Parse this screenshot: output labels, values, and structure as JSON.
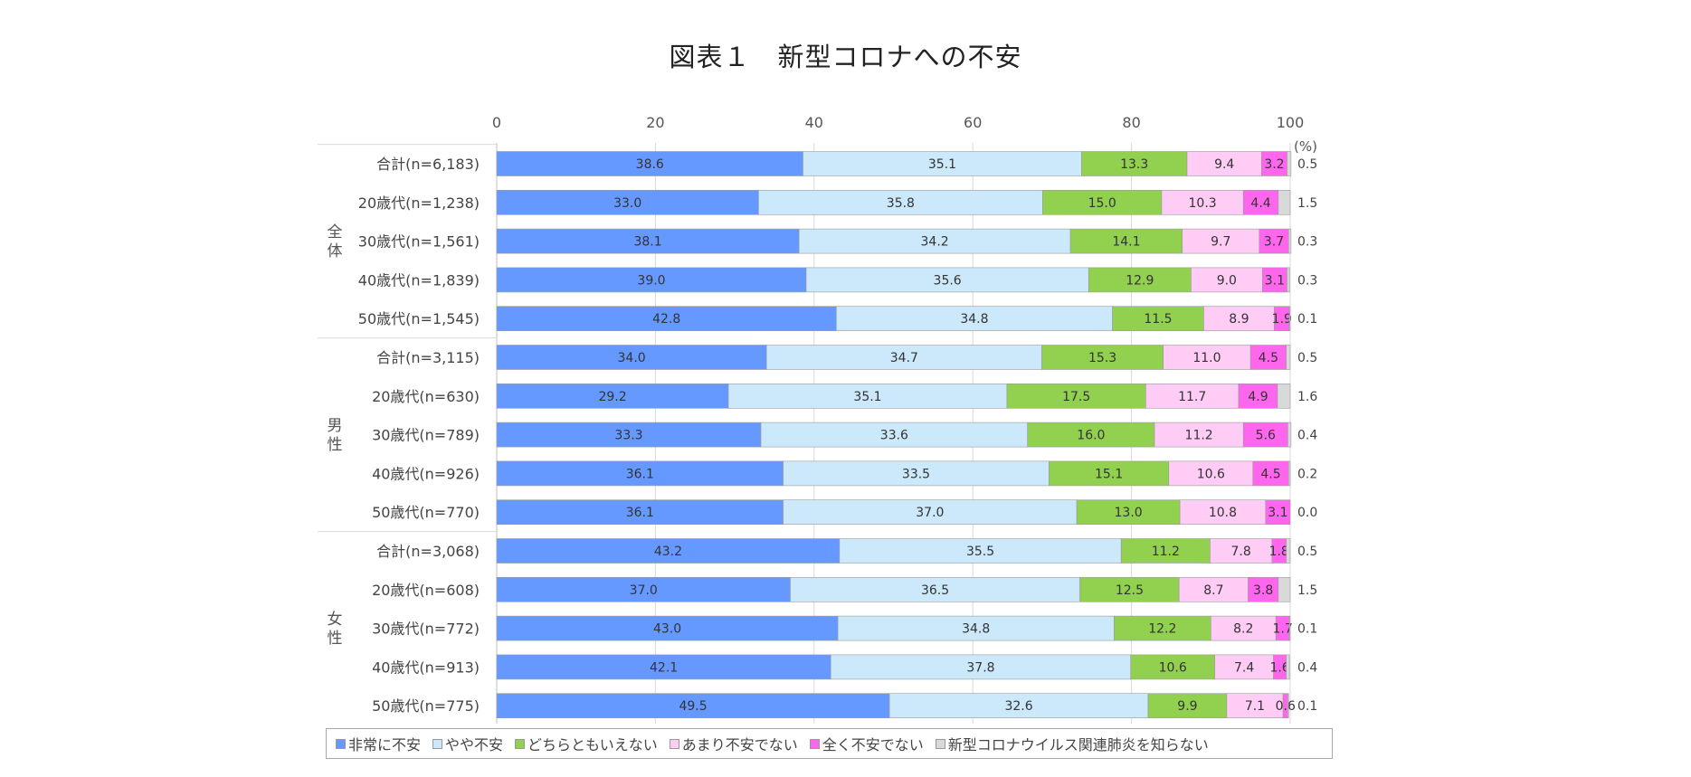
{
  "chart_data": {
    "type": "bar",
    "orientation": "horizontal",
    "stacked": true,
    "title": "図表１　新型コロナへの不安",
    "unit_label": "(%)",
    "xlim": [
      0,
      100
    ],
    "xticks": [
      "0",
      "20",
      "40",
      "60",
      "80",
      "100"
    ],
    "groups": [
      "全体",
      "男性",
      "女性"
    ],
    "categories": [
      "合計(n=6,183)",
      "20歳代(n=1,238)",
      "30歳代(n=1,561)",
      "40歳代(n=1,839)",
      "50歳代(n=1,545)",
      "合計(n=3,115)",
      "20歳代(n=630)",
      "30歳代(n=789)",
      "40歳代(n=926)",
      "50歳代(n=770)",
      "合計(n=3,068)",
      "20歳代(n=608)",
      "30歳代(n=772)",
      "40歳代(n=913)",
      "50歳代(n=775)"
    ],
    "category_group": [
      0,
      0,
      0,
      0,
      0,
      1,
      1,
      1,
      1,
      1,
      2,
      2,
      2,
      2,
      2
    ],
    "series": [
      {
        "name": "非常に不安",
        "color": "#6699ff",
        "values": [
          38.6,
          33.0,
          38.1,
          39.0,
          42.8,
          34.0,
          29.2,
          33.3,
          36.1,
          36.1,
          43.2,
          37.0,
          43.0,
          42.1,
          49.5
        ],
        "labels": [
          "38.6",
          "33.0",
          "38.1",
          "39.0",
          "42.8",
          "34.0",
          "29.2",
          "33.3",
          "36.1",
          "36.1",
          "43.2",
          "37.0",
          "43.0",
          "42.1",
          "49.5"
        ]
      },
      {
        "name": "やや不安",
        "color": "#cce9fb",
        "values": [
          35.1,
          35.8,
          34.2,
          35.6,
          34.8,
          34.7,
          35.1,
          33.6,
          33.5,
          37.0,
          35.5,
          36.5,
          34.8,
          37.8,
          32.6
        ],
        "labels": [
          "35.1",
          "35.8",
          "34.2",
          "35.6",
          "34.8",
          "34.7",
          "35.1",
          "33.6",
          "33.5",
          "37.0",
          "35.5",
          "36.5",
          "34.8",
          "37.8",
          "32.6"
        ]
      },
      {
        "name": "どちらともいえない",
        "color": "#92d050",
        "values": [
          13.3,
          15.0,
          14.1,
          12.9,
          11.5,
          15.3,
          17.5,
          16.0,
          15.1,
          13.0,
          11.2,
          12.5,
          12.2,
          10.6,
          9.9
        ],
        "labels": [
          "13.3",
          "15.0",
          "14.1",
          "12.9",
          "11.5",
          "15.3",
          "17.5",
          "16.0",
          "15.1",
          "13.0",
          "11.2",
          "12.5",
          "12.2",
          "10.6",
          "9.9"
        ]
      },
      {
        "name": "あまり不安でない",
        "color": "#ffccf5",
        "values": [
          9.4,
          10.3,
          9.7,
          9.0,
          8.9,
          11.0,
          11.7,
          11.2,
          10.6,
          10.8,
          7.8,
          8.7,
          8.2,
          7.4,
          7.1
        ],
        "labels": [
          "9.4",
          "10.3",
          "9.7",
          "9.0",
          "8.9",
          "11.0",
          "11.7",
          "11.2",
          "10.6",
          "10.8",
          "7.8",
          "8.7",
          "8.2",
          "7.4",
          "7.1"
        ]
      },
      {
        "name": "全く不安でない",
        "color": "#ff66ee",
        "values": [
          3.2,
          4.4,
          3.7,
          3.1,
          1.9,
          4.5,
          4.9,
          5.6,
          4.5,
          3.1,
          1.8,
          3.8,
          1.7,
          1.6,
          0.6
        ],
        "labels": [
          "3.2",
          "4.4",
          "3.7",
          "3.1",
          "1.9",
          "4.5",
          "4.9",
          "5.6",
          "4.5",
          "3.1",
          "1.8",
          "3.8",
          "1.7",
          "1.6",
          "0.6"
        ]
      },
      {
        "name": "新型コロナウイルス関連肺炎を知らない",
        "color": "#d9d9d9",
        "values": [
          0.5,
          1.5,
          0.3,
          0.3,
          0.1,
          0.5,
          1.6,
          0.4,
          0.2,
          0.0,
          0.5,
          1.5,
          0.1,
          0.4,
          0.1
        ],
        "labels": [
          "0.5",
          "1.5",
          "0.3",
          "0.3",
          "0.1",
          "0.5",
          "1.6",
          "0.4",
          "0.2",
          "0.0",
          "0.5",
          "1.5",
          "0.1",
          "0.4",
          "0.1"
        ]
      }
    ],
    "legend_position": "bottom",
    "grid": true
  }
}
